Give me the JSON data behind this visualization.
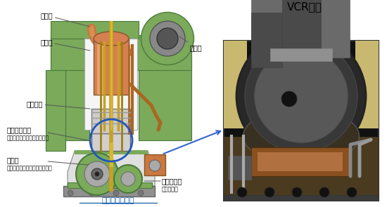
{
  "title_vcr": "VCR機構",
  "label_engine": "エンジン断面図",
  "labels": {
    "exhaust_valve": "排気弁",
    "combustion_chamber": "燃焼室",
    "piston": "ピストン",
    "crosshead": "クロスヘッド",
    "crosshead_sub": "（ピストンと接合棒を結合）",
    "connecting_rod": "接合棒",
    "connecting_rod_sub": "（ピストンとクランク軸を結合",
    "supercharger": "過給機",
    "crankshaft": "クランク軸",
    "crankshaft_sub": "（出力軸）"
  },
  "bg_color": "#ffffff",
  "green_light": "#88bb66",
  "green_mid": "#6a9e50",
  "green_dark": "#4a7a3a",
  "green_body": "#7aaa5a",
  "orange_piston": "#d4824a",
  "orange_pipe": "#c87840",
  "gold_rod": "#c8a020",
  "gold_dark": "#a07810",
  "blue_circle": "#2255bb",
  "arrow_blue": "#3366cc",
  "gray_light": "#e0e0e0",
  "gray_mid": "#b0b0b0",
  "gray_dark": "#888888",
  "white_inner": "#f5f5f5",
  "brown_pipe": "#aa6622",
  "text_color": "#000000",
  "link_color": "#1a5fad",
  "photo_bg_outer": "#c8b060",
  "photo_bg_dark": "#1a1a1a",
  "photo_dome_metal": "#606060",
  "photo_chrome": "#909090"
}
